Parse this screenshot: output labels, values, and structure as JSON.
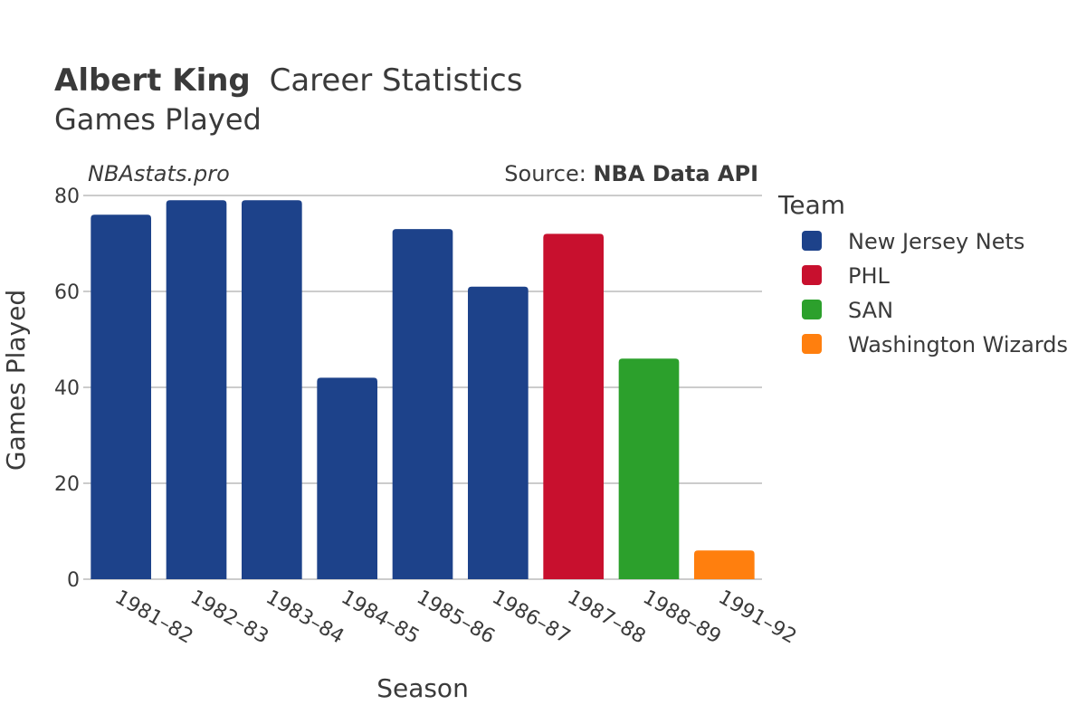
{
  "header": {
    "player_name": "Albert King",
    "title_suffix": "Career Statistics",
    "subtitle": "Games Played",
    "brand": "NBAstats.pro",
    "source_prefix": "Source: ",
    "source_name": "NBA Data API"
  },
  "chart_data": {
    "type": "bar",
    "title": "Albert King Career Statistics",
    "subtitle": "Games Played",
    "xlabel": "Season",
    "ylabel": "Games Played",
    "ylim": [
      0,
      80
    ],
    "yticks": [
      0,
      20,
      40,
      60,
      80
    ],
    "grid": true,
    "categories": [
      "1981–82",
      "1982–83",
      "1983–84",
      "1984–85",
      "1985–86",
      "1986–87",
      "1987–88",
      "1988–89",
      "1991–92"
    ],
    "values": [
      76,
      79,
      79,
      42,
      73,
      61,
      72,
      46,
      6
    ],
    "teams": [
      "New Jersey Nets",
      "New Jersey Nets",
      "New Jersey Nets",
      "New Jersey Nets",
      "New Jersey Nets",
      "New Jersey Nets",
      "PHL",
      "SAN",
      "Washington Wizards"
    ],
    "legend": {
      "title": "Team",
      "placement": "right",
      "entries": [
        {
          "name": "New Jersey Nets",
          "color": "#1d428a"
        },
        {
          "name": "PHL",
          "color": "#c8102e"
        },
        {
          "name": "SAN",
          "color": "#2ca02c"
        },
        {
          "name": "Washington Wizards",
          "color": "#ff7f0e"
        }
      ]
    }
  }
}
